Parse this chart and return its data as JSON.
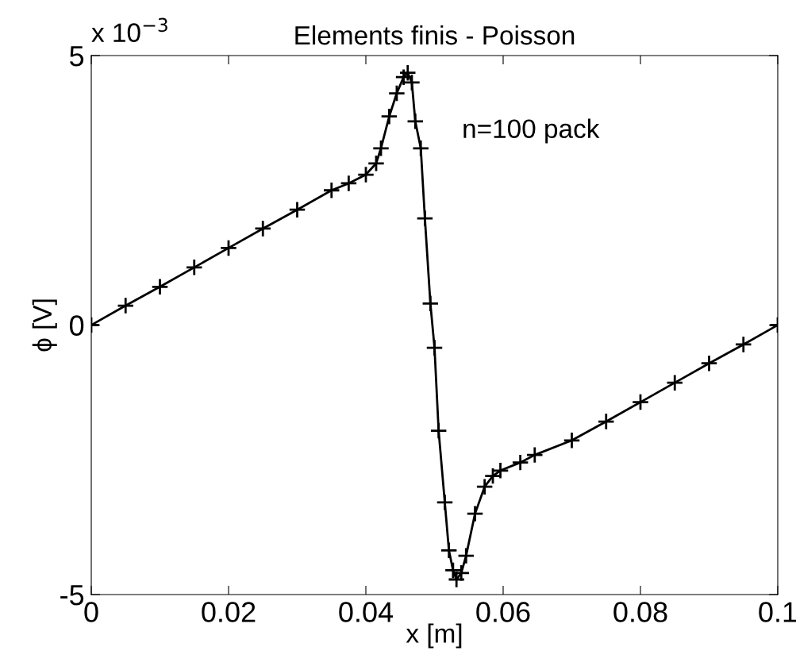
{
  "chart_data": {
    "type": "line",
    "title": "Elements finis - Poisson",
    "xlabel": "x [m]",
    "ylabel": "ϕ [V]",
    "annotations": [
      "x 10$^{−3}$",
      "n=100 pack"
    ],
    "x": [
      0,
      0.005,
      0.01,
      0.015,
      0.02,
      0.025,
      0.03,
      0.035,
      0.0375,
      0.04,
      0.0415,
      0.0422,
      0.0434,
      0.0445,
      0.0455,
      0.0461,
      0.0467,
      0.0472,
      0.048,
      0.0486,
      0.0494,
      0.05,
      0.0506,
      0.0515,
      0.0521,
      0.0527,
      0.0532,
      0.0539,
      0.0546,
      0.0559,
      0.0573,
      0.0585,
      0.0596,
      0.0625,
      0.0646,
      0.07,
      0.075,
      0.08,
      0.085,
      0.09,
      0.095,
      0.1
    ],
    "series": [
      {
        "color": "#000000",
        "values": [
          0,
          0.36,
          0.71,
          1.07,
          1.43,
          1.79,
          2.14,
          2.5,
          2.63,
          2.79,
          3.0,
          3.28,
          3.87,
          4.3,
          4.6,
          4.68,
          4.5,
          3.78,
          3.28,
          1.98,
          0.4,
          -0.42,
          -1.96,
          -3.29,
          -4.18,
          -4.55,
          -4.72,
          -4.6,
          -4.28,
          -3.5,
          -3.0,
          -2.8,
          -2.7,
          -2.55,
          -2.41,
          -2.14,
          -1.79,
          -1.43,
          -1.07,
          -0.71,
          -0.36,
          0
        ]
      }
    ],
    "marker": "cross",
    "line_style": "solid",
    "grid": false,
    "legend": false,
    "xlim": [
      0,
      0.1
    ],
    "xticks": [
      0,
      0.02,
      0.04,
      0.06,
      0.08,
      0.1
    ],
    "ylim": [
      -5,
      5
    ],
    "yticks": [
      -5,
      0,
      5
    ]
  }
}
